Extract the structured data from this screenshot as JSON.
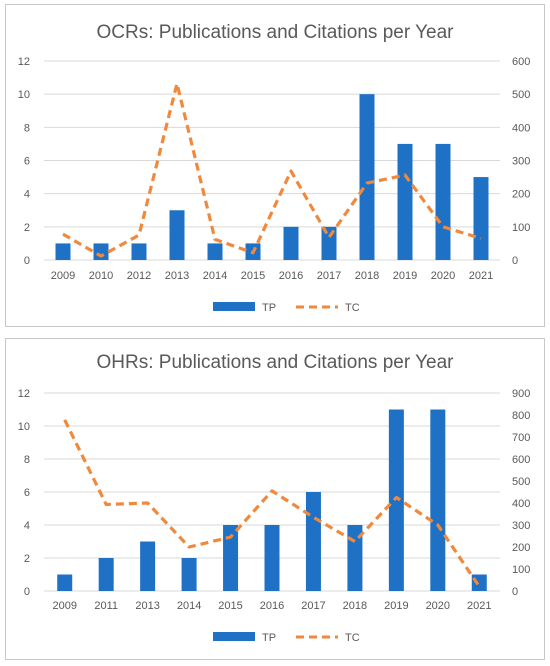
{
  "colors": {
    "bar": "#1f71c5",
    "line": "#f0893b",
    "text": "#595959",
    "grid": "#d9d9d9"
  },
  "chart_data": [
    {
      "type": "bar+line",
      "title": "OCRs: Publications and Citations per Year",
      "categories": [
        "2009",
        "2010",
        "2012",
        "2013",
        "2014",
        "2015",
        "2016",
        "2017",
        "2018",
        "2019",
        "2020",
        "2021"
      ],
      "series": [
        {
          "name": "TP",
          "type": "bar",
          "axis": "left",
          "values": [
            1,
            1,
            1,
            3,
            1,
            1,
            2,
            2,
            10,
            7,
            7,
            5
          ]
        },
        {
          "name": "TC",
          "type": "line",
          "style": "dashed",
          "axis": "right",
          "values": [
            78,
            12,
            75,
            532,
            62,
            22,
            268,
            68,
            232,
            256,
            100,
            65
          ]
        }
      ],
      "ylim_left": [
        0,
        12
      ],
      "yticks_left": [
        0,
        2,
        4,
        6,
        8,
        10,
        12
      ],
      "ylim_right": [
        0,
        600
      ],
      "yticks_right": [
        0,
        100,
        200,
        300,
        400,
        500,
        600
      ],
      "grid": true,
      "legend": "bottom-center"
    },
    {
      "type": "bar+line",
      "title": "OHRs: Publications and Citations per Year",
      "categories": [
        "2009",
        "2011",
        "2013",
        "2014",
        "2015",
        "2016",
        "2017",
        "2018",
        "2019",
        "2020",
        "2021"
      ],
      "series": [
        {
          "name": "TP",
          "type": "bar",
          "axis": "left",
          "values": [
            1,
            2,
            3,
            2,
            4,
            4,
            6,
            4,
            11,
            11,
            1
          ]
        },
        {
          "name": "TC",
          "type": "line",
          "style": "dashed",
          "axis": "right",
          "values": [
            778,
            393,
            400,
            200,
            245,
            455,
            335,
            225,
            425,
            300,
            20
          ]
        }
      ],
      "ylim_left": [
        0,
        12
      ],
      "yticks_left": [
        0,
        2,
        4,
        6,
        8,
        10,
        12
      ],
      "ylim_right": [
        0,
        900
      ],
      "yticks_right": [
        0,
        100,
        200,
        300,
        400,
        500,
        600,
        700,
        800,
        900
      ],
      "grid": true,
      "legend": "bottom-center"
    }
  ]
}
